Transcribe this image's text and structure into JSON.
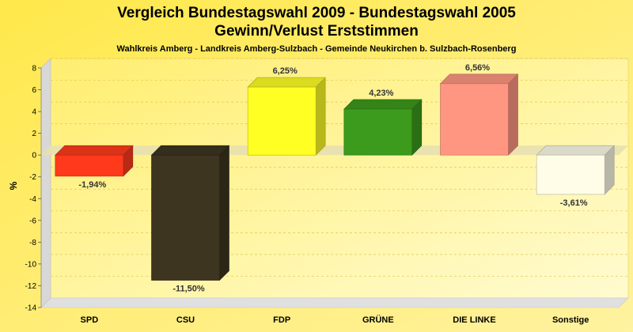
{
  "chart_data": {
    "type": "bar",
    "title": "Vergleich Bundestagswahl 2009 - Bundestagswahl 2005",
    "title_line2": "Gewinn/Verlust Erststimmen",
    "subtitle": "Wahlkreis Amberg - Landkreis Amberg-Sulzbach - Gemeinde Neukirchen b. Sulzbach-Rosenberg",
    "xlabel": "",
    "ylabel": "%",
    "ylim": [
      -14,
      8
    ],
    "yticks": [
      8,
      6,
      4,
      2,
      0,
      -2,
      -4,
      -6,
      -8,
      -10,
      -12,
      -14
    ],
    "grid": true,
    "categories": [
      "SPD",
      "CSU",
      "FDP",
      "GRÜNE",
      "DIE LINKE",
      "Sonstige"
    ],
    "values": [
      -1.94,
      -11.5,
      6.25,
      4.23,
      6.56,
      -3.61
    ],
    "value_labels": [
      "-1,94%",
      "-11,50%",
      "6,25%",
      "4,23%",
      "6,56%",
      "-3,61%"
    ],
    "colors": [
      "#ff3a1c",
      "#3d3520",
      "#ffff24",
      "#3c9a1c",
      "#ff9682",
      "#fffde8"
    ]
  }
}
